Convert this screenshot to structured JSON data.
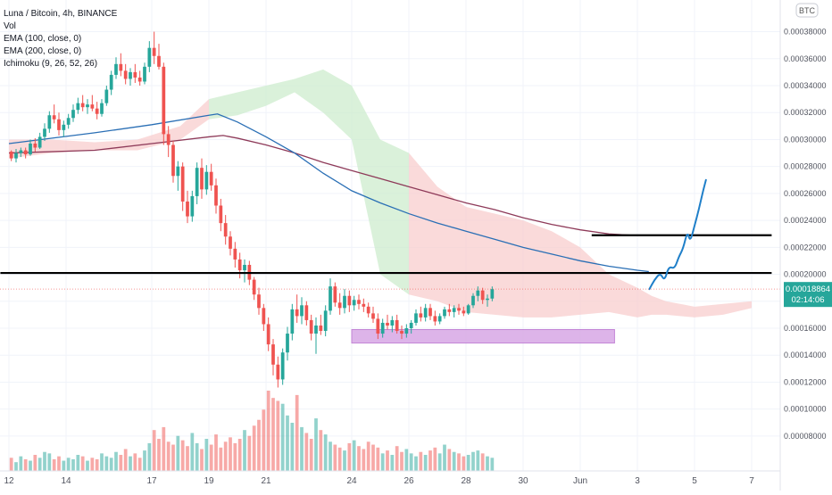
{
  "legend": {
    "title": "Luna / Bitcoin, 4h, BINANCE",
    "indicators": [
      "Vol",
      "EMA (100, close, 0)",
      "EMA (200, close, 0)",
      "Ichimoku (9, 26, 52, 26)"
    ]
  },
  "currency_badge": "BTC",
  "price_tag": {
    "value": "0.00018864",
    "countdown": "02:14:06"
  },
  "colors": {
    "up": "#26a69a",
    "down": "#ef5350",
    "ema100": "#2a6fb5",
    "ema200": "#8e3a59",
    "cloud_bear": "#f8cdcd",
    "cloud_bull": "#cdeccd",
    "projection": "#1f7fc9",
    "support_zone": "#d8a8e6"
  },
  "chart_data": {
    "type": "candlestick",
    "y_axis": {
      "min": 7e-05,
      "max": 0.000385,
      "ticks": [
        "0.00038000",
        "0.00036000",
        "0.00034000",
        "0.00032000",
        "0.00030000",
        "0.00028000",
        "0.00026000",
        "0.00024000",
        "0.00022000",
        "0.00020000",
        "0.00018000",
        "0.00016000",
        "0.00014000",
        "0.00012000",
        "0.00010000",
        "0.00008000"
      ],
      "tick_values": [
        0.00038,
        0.00036,
        0.00034,
        0.00032,
        0.0003,
        0.00028,
        0.00026,
        0.00024,
        0.00022,
        0.0002,
        0.00018,
        0.00016,
        0.00014,
        0.00012,
        0.0001,
        8e-05
      ]
    },
    "x_axis": {
      "labels": [
        "12",
        "14",
        "17",
        "19",
        "21",
        "24",
        "26",
        "28",
        "30",
        "Jun",
        "3",
        "5",
        "7"
      ],
      "label_day_index": [
        0,
        2,
        5,
        7,
        9,
        12,
        14,
        16,
        18,
        20,
        22,
        24,
        26
      ]
    },
    "candles_per_day": 6,
    "horizontal_lines": [
      {
        "price": 0.000201,
        "from_day": -0.3,
        "to_day": 26.7
      },
      {
        "price": 0.000229,
        "from_day": 20.4,
        "to_day": 26.7
      }
    ],
    "support_zone": {
      "low": 0.000149,
      "high": 0.000159,
      "from_day": 12.0,
      "to_day": 21.2
    },
    "projection_path": [
      [
        22.42,
        0.000189
      ],
      [
        22.6,
        0.000196
      ],
      [
        22.8,
        0.000201
      ],
      [
        22.95,
        0.000195
      ],
      [
        23.1,
        0.000206
      ],
      [
        23.3,
        0.000204
      ],
      [
        23.45,
        0.000213
      ],
      [
        23.6,
        0.000219
      ],
      [
        23.75,
        0.000232
      ],
      [
        23.85,
        0.000224
      ],
      [
        24.0,
        0.000236
      ],
      [
        24.15,
        0.000248
      ],
      [
        24.3,
        0.000262
      ],
      [
        24.4,
        0.00027
      ]
    ],
    "candles": [
      [
        0.000291,
        0.000292,
        0.000284,
        0.000286
      ],
      [
        0.000286,
        0.000293,
        0.000283,
        0.00029
      ],
      [
        0.00029,
        0.000294,
        0.000287,
        0.000292
      ],
      [
        0.000292,
        0.000294,
        0.000286,
        0.000289
      ],
      [
        0.000289,
        0.0003,
        0.000288,
        0.000297
      ],
      [
        0.000297,
        0.000301,
        0.000291,
        0.000294
      ],
      [
        0.000294,
        0.000305,
        0.000293,
        0.000302
      ],
      [
        0.000302,
        0.000312,
        0.000299,
        0.000308
      ],
      [
        0.000308,
        0.000321,
        0.000305,
        0.000318
      ],
      [
        0.000318,
        0.000326,
        0.000312,
        0.000315
      ],
      [
        0.000315,
        0.00032,
        0.000303,
        0.000307
      ],
      [
        0.000307,
        0.000314,
        0.000302,
        0.000311
      ],
      [
        0.000311,
        0.000319,
        0.000308,
        0.000316
      ],
      [
        0.000316,
        0.000326,
        0.000313,
        0.000322
      ],
      [
        0.000322,
        0.000331,
        0.000319,
        0.000327
      ],
      [
        0.000327,
        0.000333,
        0.000321,
        0.000324
      ],
      [
        0.000324,
        0.00033,
        0.000319,
        0.000326
      ],
      [
        0.000326,
        0.000333,
        0.000321,
        0.000323
      ],
      [
        0.000323,
        0.000328,
        0.000315,
        0.000319
      ],
      [
        0.000319,
        0.00033,
        0.000317,
        0.000327
      ],
      [
        0.000327,
        0.00034,
        0.000325,
        0.000337
      ],
      [
        0.000337,
        0.000351,
        0.000333,
        0.000348
      ],
      [
        0.000348,
        0.000361,
        0.000345,
        0.000356
      ],
      [
        0.000356,
        0.000364,
        0.000347,
        0.000351
      ],
      [
        0.000351,
        0.000356,
        0.000341,
        0.000345
      ],
      [
        0.000345,
        0.000353,
        0.00034,
        0.00035
      ],
      [
        0.00035,
        0.000356,
        0.000342,
        0.000346
      ],
      [
        0.000346,
        0.000351,
        0.00034,
        0.000343
      ],
      [
        0.000343,
        0.000357,
        0.000341,
        0.000354
      ],
      [
        0.000354,
        0.000373,
        0.00035,
        0.000368
      ],
      [
        0.000368,
        0.00038,
        0.000356,
        0.000362
      ],
      [
        0.000362,
        0.000371,
        0.000352,
        0.000354
      ],
      [
        0.000354,
        0.000357,
        0.000296,
        0.000304
      ],
      [
        0.000304,
        0.00031,
        0.000287,
        0.000296
      ],
      [
        0.000296,
        0.000299,
        0.000268,
        0.000273
      ],
      [
        0.000273,
        0.000284,
        0.000262,
        0.00028
      ],
      [
        0.00028,
        0.000283,
        0.000247,
        0.000254
      ],
      [
        0.000254,
        0.000262,
        0.000238,
        0.000243
      ],
      [
        0.000243,
        0.000262,
        0.000239,
        0.000258
      ],
      [
        0.000258,
        0.000283,
        0.000252,
        0.000279
      ],
      [
        0.000279,
        0.000286,
        0.000256,
        0.000263
      ],
      [
        0.000263,
        0.000281,
        0.000259,
        0.000276
      ],
      [
        0.000276,
        0.000282,
        0.000262,
        0.000266
      ],
      [
        0.000266,
        0.000271,
        0.000245,
        0.000251
      ],
      [
        0.000251,
        0.000256,
        0.000232,
        0.000238
      ],
      [
        0.000238,
        0.000244,
        0.000222,
        0.000228
      ],
      [
        0.000228,
        0.000232,
        0.000214,
        0.000219
      ],
      [
        0.000219,
        0.000224,
        0.000205,
        0.000211
      ],
      [
        0.000211,
        0.000216,
        0.000197,
        0.000203
      ],
      [
        0.000203,
        0.000211,
        0.000194,
        0.000207
      ],
      [
        0.000207,
        0.00021,
        0.000192,
        0.000196
      ],
      [
        0.000196,
        0.000198,
        0.000181,
        0.000185
      ],
      [
        0.000185,
        0.00019,
        0.00017,
        0.000175
      ],
      [
        0.000175,
        0.000178,
        0.000158,
        0.000163
      ],
      [
        0.000163,
        0.000168,
        0.000143,
        0.000148
      ],
      [
        0.000148,
        0.000152,
        0.000125,
        0.000133
      ],
      [
        0.000133,
        0.000139,
        0.000116,
        0.000122
      ],
      [
        0.000122,
        0.000145,
        0.000118,
        0.000142
      ],
      [
        0.000142,
        0.000161,
        0.000136,
        0.000156
      ],
      [
        0.000156,
        0.000178,
        0.000151,
        0.000174
      ],
      [
        0.000174,
        0.000185,
        0.000164,
        0.000169
      ],
      [
        0.000169,
        0.000183,
        0.000163,
        0.000177
      ],
      [
        0.000177,
        0.00018,
        0.000162,
        0.000166
      ],
      [
        0.000166,
        0.00017,
        0.000151,
        0.000156
      ],
      [
        0.000156,
        0.000168,
        0.000141,
        0.000162
      ],
      [
        0.000162,
        0.00017,
        0.000155,
        0.000158
      ],
      [
        0.000158,
        0.000177,
        0.000154,
        0.000173
      ],
      [
        0.000173,
        0.000197,
        0.00017,
        0.000191
      ],
      [
        0.000191,
        0.000194,
        0.000176,
        0.000179
      ],
      [
        0.000179,
        0.000186,
        0.00017,
        0.000175
      ],
      [
        0.000175,
        0.000189,
        0.000171,
        0.000184
      ],
      [
        0.000184,
        0.000188,
        0.000172,
        0.000177
      ],
      [
        0.000177,
        0.000184,
        0.000173,
        0.000181
      ],
      [
        0.000181,
        0.000185,
        0.000174,
        0.000178
      ],
      [
        0.000178,
        0.000182,
        0.000172,
        0.000176
      ],
      [
        0.000176,
        0.000179,
        0.000168,
        0.000171
      ],
      [
        0.000171,
        0.000176,
        0.000164,
        0.000167
      ],
      [
        0.000167,
        0.000171,
        0.000152,
        0.000156
      ],
      [
        0.000156,
        0.000167,
        0.000153,
        0.000164
      ],
      [
        0.000164,
        0.00017,
        0.000159,
        0.000162
      ],
      [
        0.000162,
        0.000169,
        0.000157,
        0.000166
      ],
      [
        0.000166,
        0.00017,
        0.000156,
        0.000158
      ],
      [
        0.000158,
        0.000162,
        0.000152,
        0.000156
      ],
      [
        0.000156,
        0.000163,
        0.000153,
        0.00016
      ],
      [
        0.00016,
        0.000166,
        0.000156,
        0.000164
      ],
      [
        0.000164,
        0.000174,
        0.000162,
        0.000171
      ],
      [
        0.000171,
        0.000176,
        0.000165,
        0.000168
      ],
      [
        0.000168,
        0.000178,
        0.000165,
        0.000175
      ],
      [
        0.000175,
        0.000178,
        0.000166,
        0.000169
      ],
      [
        0.000169,
        0.000173,
        0.000162,
        0.000165
      ],
      [
        0.000165,
        0.000171,
        0.000163,
        0.000169
      ],
      [
        0.000169,
        0.000176,
        0.000167,
        0.000174
      ],
      [
        0.000174,
        0.000178,
        0.000169,
        0.000172
      ],
      [
        0.000172,
        0.000177,
        0.000168,
        0.000175
      ],
      [
        0.000175,
        0.000178,
        0.00017,
        0.000173
      ],
      [
        0.000173,
        0.000176,
        0.000169,
        0.000171
      ],
      [
        0.000171,
        0.000178,
        0.00017,
        0.000177
      ],
      [
        0.000177,
        0.000186,
        0.000175,
        0.000184
      ],
      [
        0.000184,
        0.000191,
        0.00018,
        0.000188
      ],
      [
        0.000188,
        0.00019,
        0.000178,
        0.000181
      ],
      [
        0.000181,
        0.000185,
        0.000176,
        0.000182
      ],
      [
        0.000182,
        0.000191,
        0.00018,
        0.000189
      ]
    ],
    "volumes": [
      9,
      6,
      10,
      8,
      7,
      11,
      9,
      13,
      12,
      8,
      10,
      7,
      9,
      8,
      11,
      10,
      7,
      9,
      8,
      12,
      10,
      9,
      13,
      11,
      15,
      10,
      12,
      9,
      14,
      19,
      28,
      22,
      30,
      20,
      18,
      24,
      21,
      17,
      26,
      19,
      15,
      22,
      18,
      25,
      16,
      20,
      23,
      19,
      22,
      28,
      24,
      31,
      35,
      42,
      55,
      50,
      48,
      46,
      38,
      33,
      52,
      30,
      26,
      22,
      36,
      28,
      25,
      20,
      18,
      16,
      14,
      19,
      21,
      17,
      15,
      20,
      18,
      16,
      12,
      14,
      11,
      17,
      13,
      15,
      12,
      10,
      13,
      11,
      14,
      16,
      12,
      18,
      15,
      13,
      12,
      10,
      11,
      13,
      14,
      12,
      10,
      9
    ],
    "ema100": [
      [
        0,
        0.000297
      ],
      [
        3,
        0.000305
      ],
      [
        5,
        0.000311
      ],
      [
        7,
        0.000318
      ],
      [
        7.3,
        0.000319
      ],
      [
        8,
        0.000313
      ],
      [
        9,
        0.000302
      ],
      [
        10,
        0.00029
      ],
      [
        11,
        0.000275
      ],
      [
        12,
        0.000262
      ],
      [
        13,
        0.000253
      ],
      [
        14,
        0.000245
      ],
      [
        15,
        0.000238
      ],
      [
        16,
        0.000232
      ],
      [
        17,
        0.000226
      ],
      [
        18,
        0.00022
      ],
      [
        19,
        0.000215
      ],
      [
        20,
        0.00021
      ],
      [
        21,
        0.000206
      ],
      [
        22,
        0.000203
      ],
      [
        22.4,
        0.000202
      ]
    ],
    "ema200": [
      [
        0,
        0.00029
      ],
      [
        3,
        0.000292
      ],
      [
        5,
        0.000297
      ],
      [
        7,
        0.000302
      ],
      [
        7.5,
        0.000303
      ],
      [
        8,
        0.000301
      ],
      [
        9,
        0.000296
      ],
      [
        10,
        0.00029
      ],
      [
        11,
        0.000283
      ],
      [
        12,
        0.000277
      ],
      [
        13,
        0.000271
      ],
      [
        14,
        0.000265
      ],
      [
        15,
        0.000259
      ],
      [
        16,
        0.000253
      ],
      [
        17,
        0.000248
      ],
      [
        18,
        0.000242
      ],
      [
        19,
        0.000237
      ],
      [
        20,
        0.000233
      ],
      [
        21,
        0.00023
      ],
      [
        21.8,
        0.000229
      ]
    ],
    "cloud": [
      [
        0,
        0.0003,
        0.000286
      ],
      [
        1.5,
        0.0003,
        0.00029
      ],
      [
        3,
        0.000298,
        0.000292
      ],
      [
        4.5,
        0.0003,
        0.000292
      ],
      [
        6,
        0.00031,
        0.0003
      ],
      [
        7,
        0.00033,
        0.000315
      ],
      [
        8,
        0.000335,
        0.000318
      ],
      [
        9,
        0.00034,
        0.000325
      ],
      [
        10,
        0.000345,
        0.000335
      ],
      [
        11,
        0.000352,
        0.00032
      ],
      [
        12,
        0.00034,
        0.0003
      ],
      [
        13,
        0.0003,
        0.0002
      ],
      [
        14,
        0.00029,
        0.000185
      ],
      [
        15,
        0.000265,
        0.00018
      ],
      [
        16,
        0.00025,
        0.000172
      ],
      [
        17,
        0.000245,
        0.00017
      ],
      [
        18,
        0.00024,
        0.000168
      ],
      [
        19,
        0.000232,
        0.000168
      ],
      [
        20,
        0.00022,
        0.00017
      ],
      [
        21,
        0.0002,
        0.000172
      ],
      [
        22,
        0.00019,
        0.000168
      ],
      [
        22.5,
        0.000184,
        0.00017
      ],
      [
        23,
        0.00018,
        0.00017
      ],
      [
        24,
        0.000176,
        0.000168
      ],
      [
        25,
        0.000178,
        0.00017
      ],
      [
        26,
        0.00018,
        0.000175
      ]
    ]
  }
}
